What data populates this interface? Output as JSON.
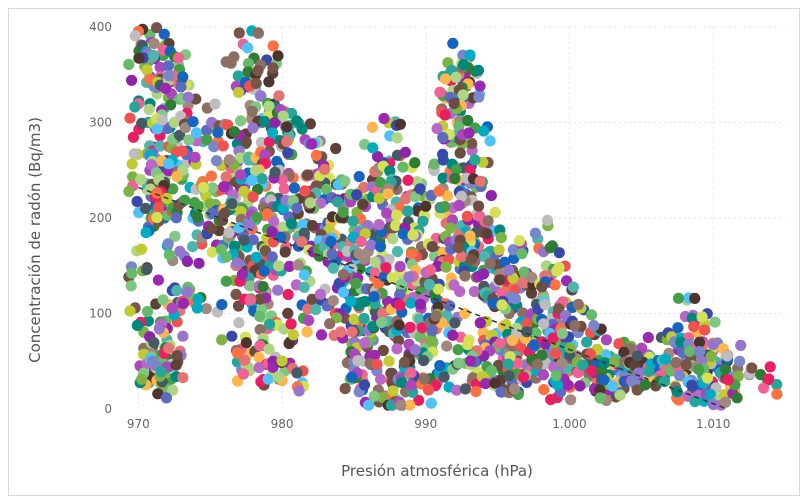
{
  "chart_data": {
    "type": "scatter",
    "title": "",
    "xlabel": "Presión atmosférica (hPa)",
    "ylabel": "Concentración de radón (Bq/m3)",
    "xlim": [
      969,
      1015
    ],
    "ylim": [
      0,
      400
    ],
    "xticks": [
      {
        "value": 970,
        "label": "970"
      },
      {
        "value": 980,
        "label": "980"
      },
      {
        "value": 990,
        "label": "990"
      },
      {
        "value": 1000,
        "label": "1.000"
      },
      {
        "value": 1010,
        "label": "1.010"
      }
    ],
    "yticks": [
      {
        "value": 0,
        "label": "0"
      },
      {
        "value": 100,
        "label": "100"
      },
      {
        "value": 200,
        "label": "200"
      },
      {
        "value": 300,
        "label": "300"
      },
      {
        "value": 400,
        "label": "400"
      }
    ],
    "grid": true,
    "trendline": {
      "style": "dashed",
      "color": "#333333",
      "x": [
        970,
        1011
      ],
      "y": [
        232,
        0
      ]
    },
    "point_color_mode": "random multicolor",
    "points": [
      [
        970.8,
        392
      ],
      [
        970.9,
        384
      ],
      [
        971.0,
        368
      ],
      [
        970.6,
        355
      ],
      [
        971.3,
        330
      ],
      [
        970.7,
        300
      ],
      [
        971.5,
        286
      ],
      [
        971.0,
        270
      ],
      [
        970.8,
        250
      ],
      [
        971.7,
        242
      ],
      [
        970.6,
        230
      ],
      [
        971.2,
        220
      ],
      [
        970.5,
        210
      ],
      [
        971.8,
        200
      ],
      [
        970.6,
        148
      ],
      [
        971.9,
        92
      ],
      [
        970.7,
        92
      ],
      [
        971.0,
        66
      ],
      [
        971.9,
        64
      ],
      [
        971.1,
        42
      ],
      [
        971.6,
        40
      ],
      [
        970.9,
        34
      ],
      [
        971.3,
        30
      ],
      [
        972.0,
        44
      ],
      [
        972.3,
        330
      ],
      [
        972.8,
        360
      ],
      [
        973.0,
        345
      ],
      [
        972.5,
        300
      ],
      [
        973.4,
        270
      ],
      [
        972.9,
        250
      ],
      [
        973.6,
        232
      ],
      [
        972.4,
        210
      ],
      [
        973.8,
        200
      ],
      [
        973.2,
        160
      ],
      [
        973.5,
        118
      ],
      [
        973.0,
        112
      ],
      [
        974.5,
        280
      ],
      [
        975.1,
        300
      ],
      [
        975.8,
        255
      ],
      [
        976.2,
        230
      ],
      [
        975.0,
        215
      ],
      [
        976.6,
        190
      ],
      [
        974.8,
        185
      ],
      [
        976.9,
        170
      ],
      [
        977.3,
        382
      ],
      [
        977.8,
        350
      ],
      [
        978.5,
        360
      ],
      [
        978.0,
        335
      ],
      [
        979.0,
        320
      ],
      [
        978.6,
        300
      ],
      [
        979.5,
        300
      ],
      [
        977.5,
        288
      ],
      [
        980.4,
        290
      ],
      [
        977.0,
        270
      ],
      [
        978.8,
        262
      ],
      [
        979.8,
        250
      ],
      [
        981.6,
        282
      ],
      [
        977.2,
        240
      ],
      [
        978.3,
        230
      ],
      [
        979.2,
        222
      ],
      [
        980.0,
        212
      ],
      [
        976.0,
        205
      ],
      [
        977.7,
        196
      ],
      [
        979.0,
        188
      ],
      [
        980.6,
        200
      ],
      [
        981.1,
        180
      ],
      [
        982.5,
        262
      ],
      [
        982.0,
        245
      ],
      [
        983.1,
        230
      ],
      [
        977.0,
        160
      ],
      [
        978.0,
        150
      ],
      [
        979.4,
        140
      ],
      [
        980.3,
        170
      ],
      [
        981.0,
        130
      ],
      [
        982.2,
        210
      ],
      [
        983.0,
        190
      ],
      [
        984.0,
        200
      ],
      [
        976.8,
        120
      ],
      [
        977.9,
        110
      ],
      [
        978.6,
        96
      ],
      [
        979.7,
        88
      ],
      [
        981.5,
        95
      ],
      [
        976.9,
        60
      ],
      [
        977.5,
        46
      ],
      [
        978.4,
        54
      ],
      [
        980.2,
        40
      ],
      [
        980.0,
        30
      ],
      [
        982.6,
        160
      ],
      [
        983.5,
        150
      ],
      [
        984.2,
        170
      ],
      [
        985.0,
        222
      ],
      [
        985.8,
        212
      ],
      [
        986.3,
        240
      ],
      [
        987.0,
        258
      ],
      [
        987.5,
        286
      ],
      [
        988.0,
        230
      ],
      [
        988.6,
        220
      ],
      [
        989.4,
        238
      ],
      [
        990.3,
        220
      ],
      [
        991.0,
        205
      ],
      [
        985.2,
        180
      ],
      [
        986.0,
        165
      ],
      [
        986.8,
        175
      ],
      [
        987.8,
        190
      ],
      [
        988.8,
        182
      ],
      [
        989.7,
        170
      ],
      [
        990.6,
        160
      ],
      [
        984.6,
        140
      ],
      [
        985.5,
        126
      ],
      [
        986.4,
        120
      ],
      [
        987.3,
        135
      ],
      [
        988.2,
        145
      ],
      [
        989.1,
        130
      ],
      [
        990.0,
        120
      ],
      [
        991.2,
        150
      ],
      [
        983.3,
        110
      ],
      [
        984.4,
        95
      ],
      [
        985.3,
        88
      ],
      [
        986.1,
        80
      ],
      [
        987.0,
        100
      ],
      [
        988.0,
        92
      ],
      [
        989.0,
        85
      ],
      [
        990.2,
        95
      ],
      [
        991.4,
        110
      ],
      [
        984.8,
        60
      ],
      [
        985.7,
        50
      ],
      [
        986.6,
        40
      ],
      [
        987.6,
        30
      ],
      [
        988.5,
        45
      ],
      [
        989.4,
        60
      ],
      [
        990.5,
        70
      ],
      [
        991.6,
        80
      ],
      [
        985.6,
        20
      ],
      [
        987.2,
        12
      ],
      [
        988.6,
        18
      ],
      [
        990.0,
        25
      ],
      [
        991.0,
        35
      ],
      [
        992.0,
        45
      ],
      [
        992.5,
        362
      ],
      [
        992.3,
        350
      ],
      [
        992.6,
        340
      ],
      [
        992.1,
        325
      ],
      [
        993.0,
        320
      ],
      [
        992.2,
        300
      ],
      [
        992.0,
        285
      ],
      [
        993.2,
        278
      ],
      [
        992.4,
        268
      ],
      [
        993.4,
        240
      ],
      [
        992.2,
        240
      ],
      [
        992.8,
        225
      ],
      [
        993.6,
        205
      ],
      [
        992.5,
        192
      ],
      [
        994.0,
        185
      ],
      [
        993.1,
        175
      ],
      [
        994.5,
        165
      ],
      [
        992.7,
        150
      ],
      [
        993.8,
        140
      ],
      [
        994.8,
        128
      ],
      [
        995.5,
        150
      ],
      [
        996.2,
        140
      ],
      [
        997.0,
        130
      ],
      [
        997.8,
        178
      ],
      [
        998.4,
        150
      ],
      [
        999.0,
        130
      ],
      [
        995.0,
        110
      ],
      [
        995.8,
        100
      ],
      [
        996.6,
        90
      ],
      [
        997.4,
        100
      ],
      [
        998.2,
        110
      ],
      [
        999.2,
        100
      ],
      [
        999.8,
        90
      ],
      [
        994.0,
        80
      ],
      [
        994.8,
        70
      ],
      [
        995.6,
        60
      ],
      [
        996.4,
        50
      ],
      [
        997.2,
        60
      ],
      [
        998.0,
        70
      ],
      [
        998.8,
        60
      ],
      [
        999.6,
        55
      ],
      [
        993.5,
        40
      ],
      [
        994.4,
        35
      ],
      [
        995.2,
        30
      ],
      [
        996.0,
        28
      ],
      [
        997.0,
        35
      ],
      [
        998.0,
        40
      ],
      [
        999.0,
        30
      ],
      [
        999.9,
        25
      ],
      [
        1000.6,
        80
      ],
      [
        1001.2,
        70
      ],
      [
        1002.0,
        60
      ],
      [
        1002.8,
        55
      ],
      [
        1003.6,
        50
      ],
      [
        1004.4,
        45
      ],
      [
        1005.0,
        40
      ],
      [
        1005.6,
        55
      ],
      [
        1001.0,
        45
      ],
      [
        1001.8,
        38
      ],
      [
        1002.6,
        32
      ],
      [
        1003.4,
        28
      ],
      [
        1004.2,
        30
      ],
      [
        1005.2,
        35
      ],
      [
        1006.0,
        30
      ],
      [
        1006.8,
        42
      ],
      [
        1007.6,
        62
      ],
      [
        1008.2,
        55
      ],
      [
        1008.6,
        98
      ],
      [
        1008.9,
        80
      ],
      [
        1009.2,
        62
      ],
      [
        1009.6,
        50
      ],
      [
        1010.0,
        45
      ],
      [
        1010.5,
        38
      ],
      [
        1011.0,
        52
      ],
      [
        1007.9,
        34
      ],
      [
        1008.5,
        30
      ],
      [
        1009.4,
        28
      ],
      [
        1010.2,
        22
      ],
      [
        1010.8,
        15
      ],
      [
        1013.3,
        36
      ]
    ]
  }
}
